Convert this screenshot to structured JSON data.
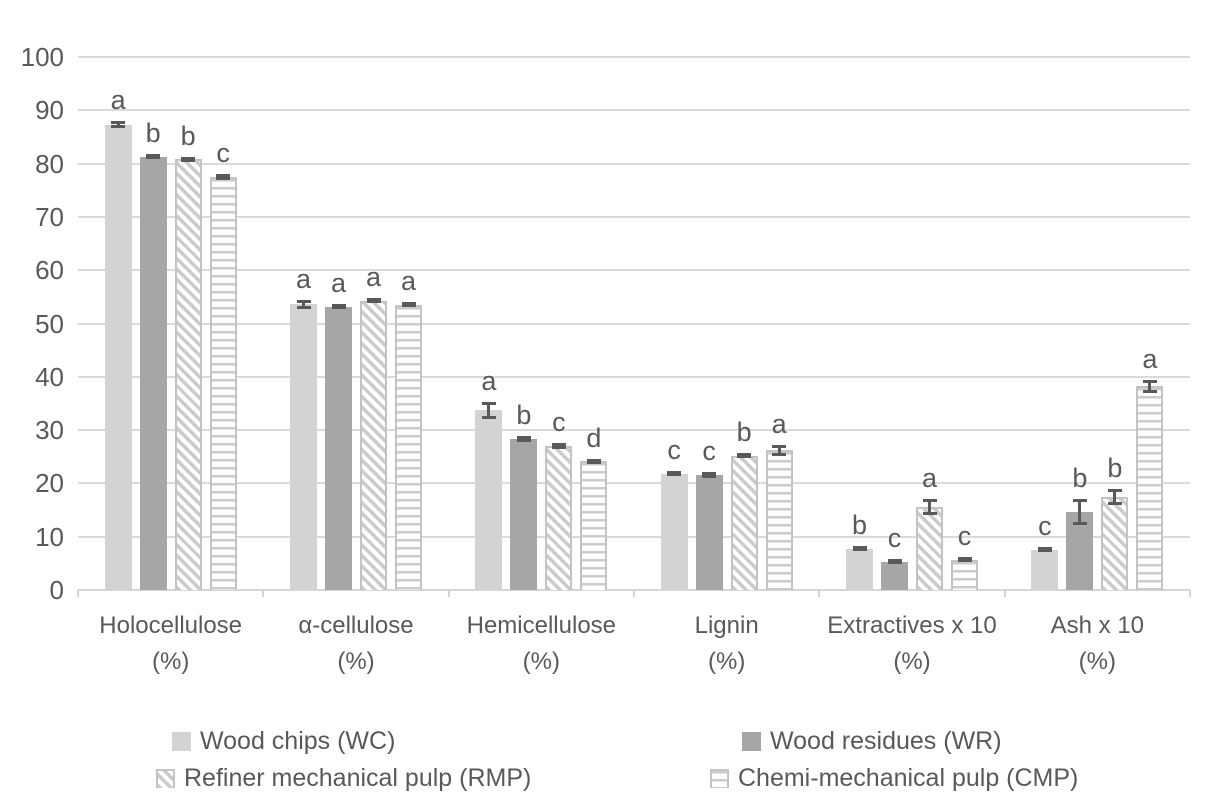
{
  "chart_data": {
    "type": "bar",
    "title": "",
    "xlabel": "",
    "ylabel": "",
    "ylim": [
      0,
      100
    ],
    "y_tick_step": 10,
    "y_ticks": [
      "0",
      "10",
      "20",
      "30",
      "40",
      "50",
      "60",
      "70",
      "80",
      "90",
      "100"
    ],
    "grid": true,
    "legend_position": "bottom",
    "categories": [
      "Holocellulose (%)",
      "α-cellulose (%)",
      "Hemicellulose (%)",
      "Lignin (%)",
      "Extractives x 10 (%)",
      "Ash x 10 (%)"
    ],
    "category_lines": [
      [
        "Holocellulose",
        "(%)"
      ],
      [
        "α-cellulose",
        "(%)"
      ],
      [
        "Hemicellulose",
        "(%)"
      ],
      [
        "Lignin",
        "(%)"
      ],
      [
        "Extractives x 10",
        "(%)"
      ],
      [
        "Ash x 10",
        "(%)"
      ]
    ],
    "series": [
      {
        "name": "Wood chips (WC)",
        "abbr": "WC",
        "fill": "solid-light",
        "values": [
          87.3,
          53.6,
          33.7,
          21.8,
          7.7,
          7.6
        ],
        "errors": [
          0.7,
          0.8,
          1.6,
          0.3,
          0.3,
          0.4
        ],
        "letters": [
          "a",
          "a",
          "a",
          "c",
          "b",
          "c"
        ]
      },
      {
        "name": "Wood residues (WR)",
        "abbr": "WR",
        "fill": "solid-dark",
        "values": [
          81.3,
          53.1,
          28.3,
          21.6,
          5.3,
          14.6
        ],
        "errors": [
          0.5,
          0.3,
          0.6,
          0.5,
          0.4,
          2.5
        ],
        "letters": [
          "b",
          "a",
          "b",
          "c",
          "c",
          "b"
        ]
      },
      {
        "name": "Refiner mechanical pulp (RMP)",
        "abbr": "RMP",
        "fill": "diagonal-stripe",
        "values": [
          80.8,
          54.3,
          27.0,
          25.2,
          15.6,
          17.4
        ],
        "errors": [
          0.5,
          0.5,
          0.5,
          0.5,
          1.5,
          1.5
        ],
        "letters": [
          "b",
          "a",
          "c",
          "b",
          "a",
          "b"
        ]
      },
      {
        "name": "Chemi-mechanical pulp (CMP)",
        "abbr": "CMP",
        "fill": "horizontal-stripe",
        "values": [
          77.5,
          53.5,
          24.2,
          26.2,
          5.7,
          38.2
        ],
        "errors": [
          0.5,
          0.4,
          0.4,
          1.0,
          0.4,
          1.2
        ],
        "letters": [
          "c",
          "a",
          "d",
          "a",
          "c",
          "a"
        ]
      }
    ]
  },
  "colors": {
    "bar_solid_light": "#d3d3d3",
    "bar_solid_dark": "#a6a6a6",
    "pattern_stripe": "#cbcbcb",
    "pattern_border": "#c3c3c3",
    "error_bar": "#595959",
    "gridline": "#dadada",
    "axis_text": "#595959",
    "background": "#ffffff"
  }
}
